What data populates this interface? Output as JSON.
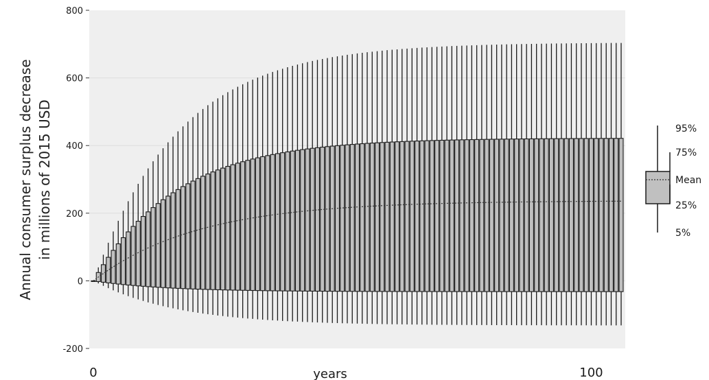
{
  "chart_data": {
    "type": "boxplot",
    "xlabel": "years",
    "ylabel_lines": [
      "Annual consumer surplus decrease",
      "in millions of 2015 USD"
    ],
    "ylim": [
      -200,
      800
    ],
    "yticks": [
      -200,
      0,
      200,
      400,
      600,
      800
    ],
    "xlim": [
      0,
      106
    ],
    "xtick_labels": [
      {
        "x": 0,
        "label": "0"
      },
      {
        "x": 100,
        "label": "100"
      }
    ],
    "grid": "horizontal",
    "legend_position": "right",
    "legend": {
      "p95": "95%",
      "p75": "75%",
      "mean": "Mean",
      "p25": "25%",
      "p5": "5%"
    },
    "colors": {
      "plot_background": "#efefef",
      "box_fill": "#c0c0c0",
      "box_edge": "#1a1a1a",
      "whisker": "#1a1a1a",
      "mean_line": "#333333",
      "gridline": "#dddddd"
    },
    "years": {
      "start": 0,
      "end": 106
    },
    "percentile_curves": {
      "p95": {
        "asymptote": 705,
        "rate": 0.058
      },
      "p75": {
        "asymptote": 422,
        "rate": 0.06
      },
      "mean": {
        "asymptote": 237,
        "rate": 0.048
      },
      "p25": {
        "asymptote": -32,
        "rate": 0.07
      },
      "p5": {
        "asymptote": -132,
        "rate": 0.06
      }
    }
  }
}
